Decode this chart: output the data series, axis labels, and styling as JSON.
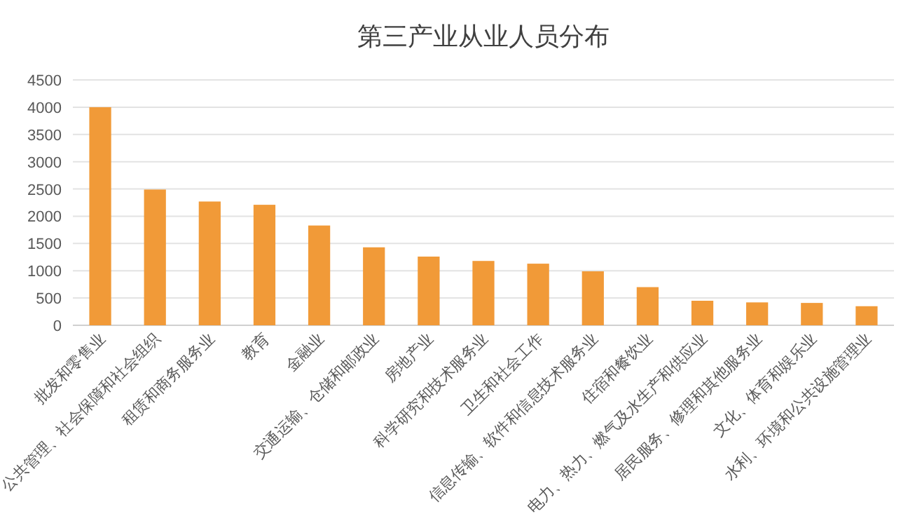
{
  "chart_data": {
    "type": "bar",
    "title": "第三产业从业人员分布",
    "categories": [
      "批发和零售业",
      "公共管理、社会保障和社会组织",
      "租赁和商务服务业",
      "教育",
      "金融业",
      "交通运输、仓储和邮政业",
      "房地产业",
      "科学研究和技术服务业",
      "卫生和社会工作",
      "信息传输、软件和信息技术服务业",
      "住宿和餐饮业",
      "电力、热力、燃气及水生产和供应业",
      "居民服务、修理和其他服务业",
      "文化、体育和娱乐业",
      "水利、环境和公共设施管理业"
    ],
    "values": [
      4000,
      2490,
      2270,
      2210,
      1830,
      1430,
      1260,
      1180,
      1130,
      990,
      700,
      450,
      420,
      410,
      350
    ],
    "color": "#f19a38",
    "ylim": [
      0,
      4500
    ],
    "yticks": [
      0,
      500,
      1000,
      1500,
      2000,
      2500,
      3000,
      3500,
      4000,
      4500
    ],
    "grid": "y"
  }
}
